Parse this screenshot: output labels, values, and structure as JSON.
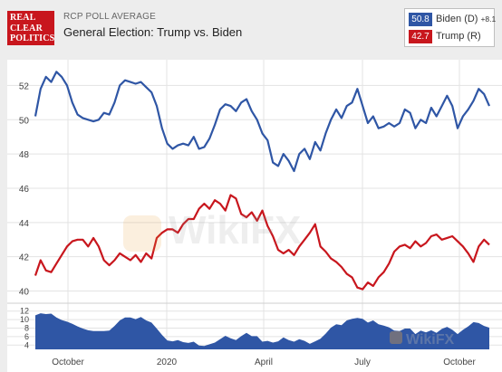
{
  "header": {
    "logo_lines": [
      "REAL",
      "CLEAR",
      "POLITICS"
    ],
    "subtitle": "RCP POLL AVERAGE",
    "title": "General Election: Trump vs. Biden"
  },
  "legend": {
    "biden": {
      "value": "50.8",
      "name": "Biden (D)",
      "spread": "+8.1",
      "color": "#2f56a5"
    },
    "trump": {
      "value": "42.7",
      "name": "Trump (R)",
      "color": "#c8161d"
    }
  },
  "watermark": "WikiFX",
  "chart_data": {
    "type": "line",
    "title": "General Election: Trump vs. Biden",
    "x_tick_labels": [
      "October",
      "2020",
      "April",
      "July",
      "October"
    ],
    "ylim": [
      39.5,
      53.5
    ],
    "y_ticks": [
      40,
      42,
      44,
      46,
      48,
      50,
      52
    ],
    "grid": true,
    "series": [
      {
        "name": "Biden (D)",
        "color": "#2f56a5",
        "values": [
          50.2,
          51.8,
          52.5,
          52.2,
          52.8,
          52.5,
          52.0,
          51.0,
          50.3,
          50.1,
          50.0,
          49.9,
          50.0,
          50.4,
          50.3,
          51.0,
          52.0,
          52.3,
          52.2,
          52.1,
          52.2,
          51.9,
          51.6,
          50.8,
          49.5,
          48.6,
          48.3,
          48.5,
          48.6,
          48.5,
          49.0,
          48.3,
          48.4,
          48.9,
          49.7,
          50.6,
          50.9,
          50.8,
          50.5,
          51.0,
          51.2,
          50.5,
          50.0,
          49.2,
          48.8,
          47.5,
          47.3,
          48.0,
          47.6,
          47.0,
          48.0,
          48.3,
          47.7,
          48.7,
          48.2,
          49.2,
          50.0,
          50.6,
          50.1,
          50.8,
          51.0,
          51.8,
          50.8,
          49.8,
          50.2,
          49.5,
          49.6,
          49.8,
          49.6,
          49.8,
          50.6,
          50.4,
          49.5,
          50.0,
          49.8,
          50.7,
          50.2,
          50.8,
          51.4,
          50.8,
          49.5,
          50.2,
          50.6,
          51.1,
          51.8,
          51.5,
          50.8
        ]
      },
      {
        "name": "Trump (R)",
        "color": "#c8161d",
        "values": [
          40.9,
          41.8,
          41.2,
          41.1,
          41.6,
          42.1,
          42.6,
          42.9,
          43.0,
          43.0,
          42.6,
          43.1,
          42.6,
          41.8,
          41.5,
          41.8,
          42.2,
          42.0,
          41.8,
          42.1,
          41.7,
          42.2,
          41.9,
          43.1,
          43.4,
          43.6,
          43.6,
          43.4,
          43.9,
          44.2,
          44.2,
          44.8,
          45.1,
          44.8,
          45.3,
          45.1,
          44.7,
          45.6,
          45.4,
          44.5,
          44.3,
          44.6,
          44.1,
          44.7,
          43.8,
          43.2,
          42.4,
          42.2,
          42.4,
          42.1,
          42.6,
          43.0,
          43.4,
          43.9,
          42.6,
          42.3,
          41.9,
          41.7,
          41.4,
          41.0,
          40.8,
          40.2,
          40.1,
          40.5,
          40.3,
          40.8,
          41.1,
          41.6,
          42.3,
          42.6,
          42.7,
          42.5,
          42.9,
          42.6,
          42.8,
          43.2,
          43.3,
          43.0,
          43.1,
          43.2,
          42.9,
          42.6,
          42.2,
          41.7,
          42.6,
          43.0,
          42.7
        ]
      }
    ],
    "spread_panel": {
      "y_ticks": [
        4,
        6,
        8,
        10,
        12
      ],
      "ylim": [
        3,
        13
      ],
      "values": [
        11.0,
        11.5,
        11.3,
        11.4,
        10.5,
        9.9,
        9.5,
        9.0,
        8.4,
        7.9,
        7.5,
        7.3,
        7.3,
        7.3,
        7.4,
        8.5,
        9.8,
        10.5,
        10.5,
        10.1,
        10.6,
        9.8,
        9.3,
        7.9,
        6.4,
        5.1,
        4.9,
        5.2,
        4.7,
        4.5,
        4.8,
        3.9,
        3.8,
        4.2,
        4.6,
        5.4,
        6.2,
        5.6,
        5.2,
        6.1,
        6.9,
        6.1,
        6.1,
        4.8,
        5.0,
        4.6,
        4.9,
        5.8,
        5.2,
        4.8,
        5.4,
        5.0,
        4.3,
        4.9,
        5.5,
        6.7,
        8.1,
        8.9,
        8.7,
        9.8,
        10.2,
        10.4,
        10.2,
        9.3,
        9.8,
        8.9,
        8.6,
        8.2,
        7.4,
        7.3,
        7.9,
        7.9,
        6.6,
        7.4,
        7.0,
        7.5,
        6.9,
        7.8,
        8.3,
        7.6,
        6.6,
        7.6,
        8.4,
        9.4,
        9.2,
        8.5,
        8.1
      ]
    }
  }
}
